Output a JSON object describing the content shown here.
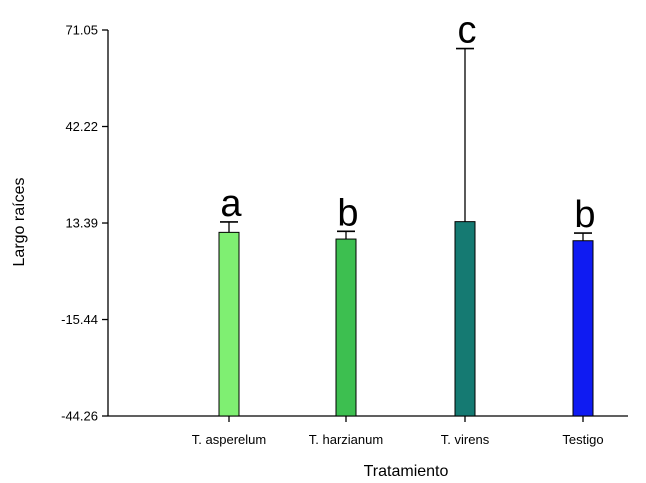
{
  "chart_data": {
    "type": "bar",
    "xlabel": "Tratamiento",
    "ylabel": "Largo raíces",
    "ylim": [
      -44.26,
      71.05
    ],
    "yticks": [
      "-44.26",
      "-15.44",
      "13.39",
      "42.22",
      "71.05"
    ],
    "categories": [
      "T. asperelum",
      "T. harzianum",
      "T. virens",
      "Testigo"
    ],
    "values": [
      10.6,
      8.6,
      13.8,
      8.1
    ],
    "error_upper": [
      13.7,
      10.9,
      65.5,
      10.4
    ],
    "letters": [
      "a",
      "b",
      "c",
      "b"
    ],
    "colors": [
      "#7fef72",
      "#3dbf50",
      "#157a72",
      "#0f1bf2"
    ],
    "grid": false,
    "legend": "none"
  }
}
